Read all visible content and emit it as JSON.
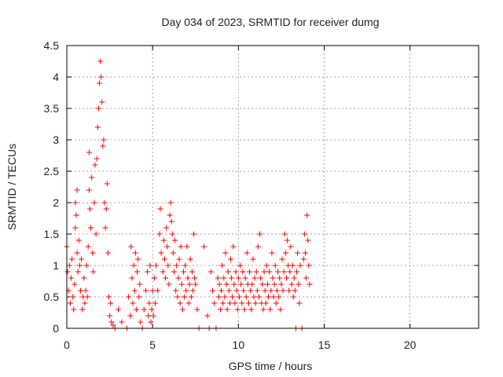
{
  "chart_data": {
    "type": "scatter",
    "title": "Day 034 of 2023, SRMTID for receiver dumg",
    "xlabel": "GPS time / hours",
    "ylabel": "SRMTID / TECUs",
    "xlim": [
      0,
      24
    ],
    "ylim": [
      0,
      4.5
    ],
    "x_ticks": [
      0,
      5,
      10,
      15,
      20
    ],
    "x_tick_labels": [
      "0",
      "5",
      "10",
      "15",
      "20"
    ],
    "y_ticks": [
      0,
      0.5,
      1,
      1.5,
      2,
      2.5,
      3,
      3.5,
      4,
      4.5
    ],
    "y_tick_labels": [
      "0",
      "0.5",
      "1",
      "1.5",
      "2",
      "2.5",
      "3",
      "3.5",
      "4",
      "4.5"
    ],
    "grid": true,
    "legend": "none",
    "marker": "plus",
    "color": "#ff0000",
    "series": [
      {
        "points": [
          [
            0.0,
            1.3
          ],
          [
            0.05,
            0.9
          ],
          [
            0.1,
            0.6
          ],
          [
            0.15,
            1.0
          ],
          [
            0.2,
            0.4
          ],
          [
            0.25,
            0.8
          ],
          [
            0.3,
            1.1
          ],
          [
            0.35,
            0.5
          ],
          [
            0.4,
            0.3
          ],
          [
            0.45,
            0.7
          ],
          [
            0.5,
            1.6
          ],
          [
            0.5,
            2.0
          ],
          [
            0.55,
            1.8
          ],
          [
            0.6,
            2.2
          ],
          [
            0.6,
            1.2
          ],
          [
            0.65,
            0.9
          ],
          [
            0.7,
            1.4
          ],
          [
            0.75,
            1.0
          ],
          [
            0.8,
            0.6
          ],
          [
            0.85,
            1.1
          ],
          [
            0.9,
            0.3
          ],
          [
            0.95,
            0.5
          ],
          [
            1.0,
            0.8
          ],
          [
            1.05,
            0.4
          ],
          [
            1.1,
            0.6
          ],
          [
            1.15,
            1.0
          ],
          [
            1.2,
            0.5
          ],
          [
            1.25,
            1.3
          ],
          [
            1.3,
            2.2
          ],
          [
            1.3,
            2.8
          ],
          [
            1.35,
            1.9
          ],
          [
            1.4,
            1.6
          ],
          [
            1.45,
            2.4
          ],
          [
            1.5,
            1.2
          ],
          [
            1.55,
            0.9
          ],
          [
            1.6,
            2.0
          ],
          [
            1.65,
            2.6
          ],
          [
            1.7,
            1.5
          ],
          [
            1.75,
            2.7
          ],
          [
            1.8,
            3.2
          ],
          [
            1.85,
            3.5
          ],
          [
            1.9,
            3.9
          ],
          [
            1.95,
            4.25
          ],
          [
            2.0,
            4.0
          ],
          [
            2.05,
            3.6
          ],
          [
            2.1,
            2.9
          ],
          [
            2.15,
            3.0
          ],
          [
            2.2,
            2.0
          ],
          [
            2.25,
            1.6
          ],
          [
            2.3,
            1.9
          ],
          [
            2.35,
            2.3
          ],
          [
            2.4,
            1.2
          ],
          [
            2.45,
            0.5
          ],
          [
            2.5,
            0.2
          ],
          [
            2.55,
            0.4
          ],
          [
            2.6,
            0.1
          ],
          [
            2.7,
            0.05
          ],
          [
            2.8,
            0.0
          ],
          [
            3.0,
            0.3
          ],
          [
            3.2,
            0.1
          ],
          [
            3.5,
            0.0
          ],
          [
            3.6,
            0.5
          ],
          [
            3.7,
            0.2
          ],
          [
            3.75,
            1.3
          ],
          [
            3.8,
            0.8
          ],
          [
            3.85,
            0.4
          ],
          [
            3.9,
            1.0
          ],
          [
            3.95,
            0.6
          ],
          [
            4.0,
            1.2
          ],
          [
            4.05,
            0.3
          ],
          [
            4.1,
            0.9
          ],
          [
            4.15,
            1.1
          ],
          [
            4.2,
            0.5
          ],
          [
            4.25,
            0.7
          ],
          [
            4.3,
            0.1
          ],
          [
            4.4,
            0.0
          ],
          [
            4.5,
            0.3
          ],
          [
            4.6,
            0.6
          ],
          [
            4.7,
            0.9
          ],
          [
            4.75,
            0.2
          ],
          [
            4.8,
            0.4
          ],
          [
            4.85,
            1.0
          ],
          [
            4.9,
            0.1
          ],
          [
            4.95,
            0.3
          ],
          [
            5.0,
            0.6
          ],
          [
            5.05,
            0.2
          ],
          [
            5.1,
            0.8
          ],
          [
            5.15,
            0.4
          ],
          [
            5.2,
            1.0
          ],
          [
            5.3,
            0.6
          ],
          [
            5.4,
            1.5
          ],
          [
            5.45,
            1.9
          ],
          [
            5.5,
            1.2
          ],
          [
            5.6,
            0.9
          ],
          [
            5.65,
            1.4
          ],
          [
            5.7,
            1.1
          ],
          [
            5.75,
            0.8
          ],
          [
            5.8,
            1.6
          ],
          [
            5.85,
            1.3
          ],
          [
            5.9,
            1.0
          ],
          [
            5.95,
            0.7
          ],
          [
            6.0,
            1.8
          ],
          [
            6.05,
            2.0
          ],
          [
            6.1,
            1.7
          ],
          [
            6.15,
            1.5
          ],
          [
            6.2,
            1.2
          ],
          [
            6.25,
            0.9
          ],
          [
            6.3,
            1.4
          ],
          [
            6.35,
            0.6
          ],
          [
            6.4,
            1.0
          ],
          [
            6.45,
            0.5
          ],
          [
            6.5,
            0.8
          ],
          [
            6.55,
            1.1
          ],
          [
            6.6,
            0.4
          ],
          [
            6.65,
            1.3
          ],
          [
            6.7,
            0.7
          ],
          [
            6.75,
            0.3
          ],
          [
            6.8,
            0.9
          ],
          [
            6.85,
            0.5
          ],
          [
            6.9,
            1.0
          ],
          [
            6.95,
            0.6
          ],
          [
            7.0,
            1.3
          ],
          [
            7.05,
            0.8
          ],
          [
            7.1,
            0.4
          ],
          [
            7.15,
            0.7
          ],
          [
            7.2,
            1.1
          ],
          [
            7.25,
            0.5
          ],
          [
            7.3,
            0.9
          ],
          [
            7.35,
            0.6
          ],
          [
            7.4,
            1.5
          ],
          [
            7.45,
            0.8
          ],
          [
            7.5,
            0.7
          ],
          [
            7.6,
            0.3
          ],
          [
            7.7,
            0.0
          ],
          [
            8.0,
            1.3
          ],
          [
            8.2,
            0.2
          ],
          [
            8.3,
            0.0
          ],
          [
            8.4,
            0.9
          ],
          [
            8.5,
            0.6
          ],
          [
            8.6,
            0.4
          ],
          [
            8.7,
            0.0
          ],
          [
            8.8,
            0.8
          ],
          [
            8.85,
            0.5
          ],
          [
            8.9,
            0.7
          ],
          [
            8.95,
            0.3
          ],
          [
            9.0,
            0.6
          ],
          [
            9.05,
            1.0
          ],
          [
            9.1,
            0.4
          ],
          [
            9.15,
            0.8
          ],
          [
            9.2,
            0.5
          ],
          [
            9.25,
            1.2
          ],
          [
            9.3,
            0.7
          ],
          [
            9.35,
            0.3
          ],
          [
            9.4,
            0.9
          ],
          [
            9.45,
            0.6
          ],
          [
            9.5,
            0.4
          ],
          [
            9.55,
            1.1
          ],
          [
            9.6,
            0.8
          ],
          [
            9.65,
            0.5
          ],
          [
            9.7,
            1.3
          ],
          [
            9.75,
            0.7
          ],
          [
            9.8,
            0.4
          ],
          [
            9.85,
            0.9
          ],
          [
            9.9,
            0.6
          ],
          [
            9.95,
            0.3
          ],
          [
            10.0,
            0.8
          ],
          [
            10.05,
            0.5
          ],
          [
            10.1,
            1.0
          ],
          [
            10.15,
            0.7
          ],
          [
            10.2,
            0.4
          ],
          [
            10.25,
            0.9
          ],
          [
            10.3,
            0.6
          ],
          [
            10.35,
            0.3
          ],
          [
            10.4,
            0.8
          ],
          [
            10.45,
            0.5
          ],
          [
            10.5,
            1.2
          ],
          [
            10.55,
            0.7
          ],
          [
            10.6,
            0.4
          ],
          [
            10.65,
            0.9
          ],
          [
            10.7,
            0.6
          ],
          [
            10.75,
            0.3
          ],
          [
            10.8,
            0.7
          ],
          [
            10.85,
            1.1
          ],
          [
            10.9,
            0.5
          ],
          [
            10.95,
            0.8
          ],
          [
            11.0,
            0.4
          ],
          [
            11.05,
            0.9
          ],
          [
            11.1,
            0.6
          ],
          [
            11.15,
            1.3
          ],
          [
            11.2,
            0.5
          ],
          [
            11.25,
            1.5
          ],
          [
            11.3,
            0.8
          ],
          [
            11.35,
            0.4
          ],
          [
            11.4,
            0.7
          ],
          [
            11.45,
            0.3
          ],
          [
            11.5,
            0.9
          ],
          [
            11.55,
            0.6
          ],
          [
            11.6,
            0.4
          ],
          [
            11.65,
            1.0
          ],
          [
            11.7,
            0.7
          ],
          [
            11.75,
            0.5
          ],
          [
            11.8,
            0.9
          ],
          [
            11.85,
            0.3
          ],
          [
            11.9,
            0.6
          ],
          [
            11.95,
            1.2
          ],
          [
            12.0,
            0.8
          ],
          [
            12.05,
            0.5
          ],
          [
            12.1,
            0.7
          ],
          [
            12.15,
            1.0
          ],
          [
            12.2,
            0.4
          ],
          [
            12.25,
            0.6
          ],
          [
            12.3,
            0.9
          ],
          [
            12.35,
            0.5
          ],
          [
            12.4,
            0.8
          ],
          [
            12.45,
            0.3
          ],
          [
            12.5,
            0.7
          ],
          [
            12.55,
            1.1
          ],
          [
            12.6,
            0.6
          ],
          [
            12.65,
            0.9
          ],
          [
            12.7,
            1.5
          ],
          [
            12.75,
            1.2
          ],
          [
            12.8,
            0.8
          ],
          [
            12.85,
            1.4
          ],
          [
            12.9,
            1.0
          ],
          [
            12.95,
            0.6
          ],
          [
            13.0,
            0.9
          ],
          [
            13.05,
            1.3
          ],
          [
            13.1,
            0.7
          ],
          [
            13.15,
            1.0
          ],
          [
            13.2,
            0.5
          ],
          [
            13.25,
            0.8
          ],
          [
            13.3,
            0.6
          ],
          [
            13.35,
            0.0
          ],
          [
            13.4,
            0.9
          ],
          [
            13.45,
            1.2
          ],
          [
            13.5,
            0.7
          ],
          [
            13.55,
            0.4
          ],
          [
            13.6,
            1.0
          ],
          [
            13.7,
            0.0
          ],
          [
            13.8,
            1.1
          ],
          [
            13.85,
            1.5
          ],
          [
            13.9,
            1.2
          ],
          [
            13.95,
            0.8
          ],
          [
            14.0,
            1.8
          ],
          [
            14.05,
            1.4
          ],
          [
            14.1,
            1.0
          ],
          [
            14.15,
            0.7
          ]
        ]
      }
    ]
  }
}
